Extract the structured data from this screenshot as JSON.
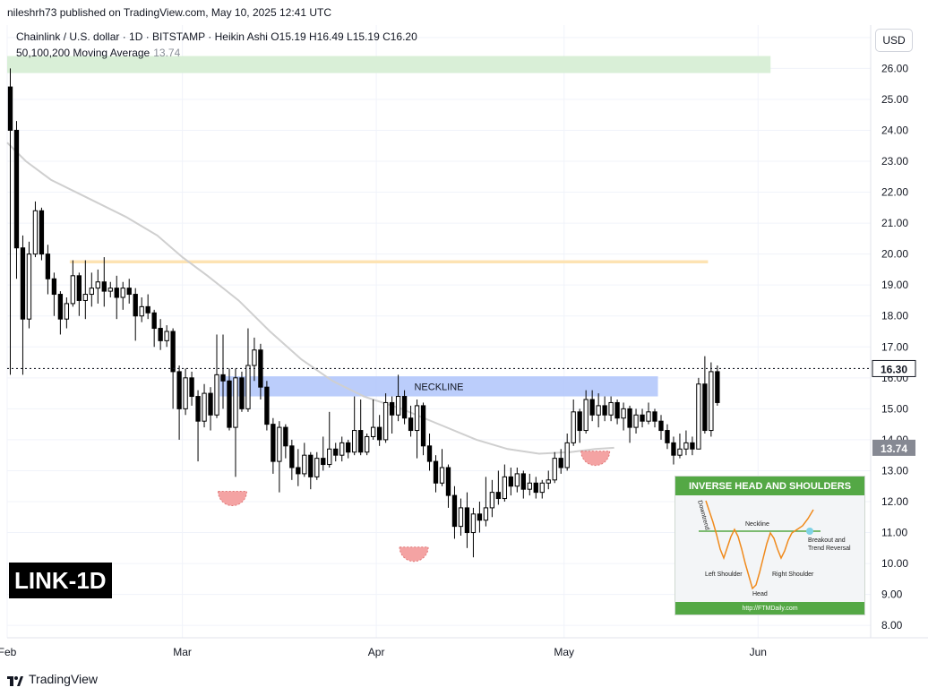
{
  "header": {
    "publisher": "nileshrh73 published on TradingView.com, May 10, 2025 12:41 UTC",
    "legend_line1": "Chainlink / U.S. dollar · 1D · BITSTAMP · Heikin Ashi  O15.19  H16.49  L15.19  C16.20",
    "legend_line2": "50,100,200 Moving Average",
    "legend_ma_value": "13.74",
    "currency_button": "USD"
  },
  "ticker_label": "LINK-1D",
  "footer": {
    "brand": "TradingView"
  },
  "colors": {
    "bull_candle": "#ffffff",
    "bear_candle": "#000000",
    "ma_line": "#cfcfcf",
    "resistance_zone": "#d9efd7",
    "mid_zone": "#fde3b3",
    "neckline_zone": "#b4c8fb",
    "shoulder_marker": "#f4a3a3",
    "inset_green": "#54a845",
    "price_marker_bg": "#ffffff",
    "ma_marker_bg": "#868993"
  },
  "inset": {
    "title": "INVERSE HEAD AND SHOULDERS",
    "neckline": "Neckline",
    "downtrend": "Downtrend",
    "left_shoulder": "Left Shoulder",
    "right_shoulder": "Right Shoulder",
    "head": "Head",
    "breakout": "Breakout and Trend Reversal",
    "url": "http://FTMDaily.com"
  },
  "chart_data": {
    "type": "candlestick",
    "title": "Chainlink / U.S. dollar · 1D · BITSTAMP · Heikin Ashi",
    "y_axis": {
      "ylim": [
        7.6,
        27.4
      ],
      "ticks": [
        8,
        9,
        10,
        11,
        12,
        13,
        14,
        15,
        16,
        17,
        18,
        19,
        20,
        21,
        22,
        23,
        24,
        25,
        26,
        27
      ],
      "tick_labels": [
        "8.00",
        "9.00",
        "10.00",
        "11.00",
        "12.00",
        "13.00",
        "14.00",
        "15.00",
        "16.00",
        "17.00",
        "18.00",
        "19.00",
        "20.00",
        "21.00",
        "22.00",
        "23.00",
        "24.00",
        "25.00",
        "26.00",
        "27.00"
      ]
    },
    "x_axis": {
      "start_date": "2025-02-01",
      "end_date": "2025-06-19",
      "tick_dates": [
        "2025-02-01",
        "2025-03-01",
        "2025-04-01",
        "2025-05-01",
        "2025-06-01"
      ],
      "tick_labels": [
        "Feb",
        "Mar",
        "Apr",
        "May",
        "Jun"
      ]
    },
    "current_price": {
      "value": 16.3,
      "label": "16.30"
    },
    "ma_current": {
      "value": 13.74,
      "label": "13.74"
    },
    "zones": [
      {
        "name": "resistance-zone",
        "from": "2025-02-01",
        "to": "2025-06-03",
        "low": 25.85,
        "high": 26.4
      },
      {
        "name": "mid-zone",
        "from": "2025-02-11",
        "to": "2025-05-24",
        "low": 19.7,
        "high": 19.8
      },
      {
        "name": "neckline-zone",
        "from": "2025-03-07",
        "to": "2025-05-16",
        "low": 15.4,
        "high": 16.05,
        "label": "NECKLINE"
      }
    ],
    "shoulder_markers": [
      {
        "name": "left-shoulder-marker",
        "date": "2025-03-09",
        "price": 12.1
      },
      {
        "name": "head-marker",
        "date": "2025-04-07",
        "price": 10.3
      },
      {
        "name": "right-shoulder-marker",
        "date": "2025-05-06",
        "price": 13.4
      }
    ],
    "moving_average": [
      {
        "date": "2025-02-01",
        "value": 23.6
      },
      {
        "date": "2025-02-04",
        "value": 23.0
      },
      {
        "date": "2025-02-08",
        "value": 22.4
      },
      {
        "date": "2025-02-14",
        "value": 21.8
      },
      {
        "date": "2025-02-20",
        "value": 21.2
      },
      {
        "date": "2025-02-25",
        "value": 20.6
      },
      {
        "date": "2025-03-01",
        "value": 19.9
      },
      {
        "date": "2025-03-05",
        "value": 19.3
      },
      {
        "date": "2025-03-10",
        "value": 18.5
      },
      {
        "date": "2025-03-15",
        "value": 17.5
      },
      {
        "date": "2025-03-20",
        "value": 16.6
      },
      {
        "date": "2025-03-25",
        "value": 15.9
      },
      {
        "date": "2025-03-30",
        "value": 15.4
      },
      {
        "date": "2025-04-05",
        "value": 15.0
      },
      {
        "date": "2025-04-11",
        "value": 14.5
      },
      {
        "date": "2025-04-17",
        "value": 14.0
      },
      {
        "date": "2025-04-22",
        "value": 13.7
      },
      {
        "date": "2025-04-27",
        "value": 13.55
      },
      {
        "date": "2025-05-02",
        "value": 13.6
      },
      {
        "date": "2025-05-06",
        "value": 13.7
      },
      {
        "date": "2025-05-09",
        "value": 13.74
      }
    ],
    "candles": [
      {
        "date": "2025-02-01",
        "open": 25.4,
        "close": 24.0,
        "high": 26.0,
        "low": 16.1
      },
      {
        "date": "2025-02-02",
        "open": 24.0,
        "close": 20.2,
        "high": 24.3,
        "low": 19.2
      },
      {
        "date": "2025-02-03",
        "open": 20.2,
        "close": 17.9,
        "high": 20.6,
        "low": 16.1
      },
      {
        "date": "2025-02-04",
        "open": 17.9,
        "close": 20.0,
        "high": 20.4,
        "low": 17.6
      },
      {
        "date": "2025-02-05",
        "open": 20.0,
        "close": 21.4,
        "high": 21.7,
        "low": 19.9
      },
      {
        "date": "2025-02-06",
        "open": 21.4,
        "close": 20.0,
        "high": 21.5,
        "low": 19.8
      },
      {
        "date": "2025-02-07",
        "open": 20.0,
        "close": 19.2,
        "high": 20.3,
        "low": 18.7
      },
      {
        "date": "2025-02-08",
        "open": 19.2,
        "close": 18.7,
        "high": 19.4,
        "low": 18.0
      },
      {
        "date": "2025-02-09",
        "open": 18.7,
        "close": 17.9,
        "high": 18.8,
        "low": 17.4
      },
      {
        "date": "2025-02-10",
        "open": 17.9,
        "close": 18.4,
        "high": 18.6,
        "low": 17.6
      },
      {
        "date": "2025-02-11",
        "open": 18.4,
        "close": 19.3,
        "high": 19.8,
        "low": 18.3
      },
      {
        "date": "2025-02-12",
        "open": 19.3,
        "close": 18.5,
        "high": 19.4,
        "low": 18.0
      },
      {
        "date": "2025-02-13",
        "open": 18.5,
        "close": 18.7,
        "high": 19.8,
        "low": 17.9
      },
      {
        "date": "2025-02-14",
        "open": 18.7,
        "close": 18.9,
        "high": 19.4,
        "low": 18.3
      },
      {
        "date": "2025-02-15",
        "open": 18.9,
        "close": 19.1,
        "high": 19.5,
        "low": 18.4
      },
      {
        "date": "2025-02-16",
        "open": 19.1,
        "close": 18.8,
        "high": 19.9,
        "low": 18.3
      },
      {
        "date": "2025-02-17",
        "open": 18.8,
        "close": 18.9,
        "high": 19.1,
        "low": 18.6
      },
      {
        "date": "2025-02-18",
        "open": 18.9,
        "close": 18.6,
        "high": 19.3,
        "low": 17.9
      },
      {
        "date": "2025-02-19",
        "open": 18.6,
        "close": 18.9,
        "high": 19.1,
        "low": 18.2
      },
      {
        "date": "2025-02-20",
        "open": 18.9,
        "close": 18.7,
        "high": 19.2,
        "low": 18.4
      },
      {
        "date": "2025-02-21",
        "open": 18.7,
        "close": 18.0,
        "high": 18.9,
        "low": 17.2
      },
      {
        "date": "2025-02-22",
        "open": 18.0,
        "close": 18.3,
        "high": 18.6,
        "low": 17.8
      },
      {
        "date": "2025-02-23",
        "open": 18.3,
        "close": 18.1,
        "high": 18.7,
        "low": 17.9
      },
      {
        "date": "2025-02-24",
        "open": 18.1,
        "close": 17.6,
        "high": 18.2,
        "low": 17.0
      },
      {
        "date": "2025-02-25",
        "open": 17.6,
        "close": 17.2,
        "high": 17.9,
        "low": 16.9
      },
      {
        "date": "2025-02-26",
        "open": 17.2,
        "close": 17.5,
        "high": 17.7,
        "low": 17.0
      },
      {
        "date": "2025-02-27",
        "open": 17.5,
        "close": 16.2,
        "high": 17.6,
        "low": 15.0
      },
      {
        "date": "2025-02-28",
        "open": 16.2,
        "close": 15.0,
        "high": 16.4,
        "low": 14.0
      },
      {
        "date": "2025-03-01",
        "open": 15.0,
        "close": 16.0,
        "high": 16.3,
        "low": 14.8
      },
      {
        "date": "2025-03-02",
        "open": 16.0,
        "close": 15.4,
        "high": 16.2,
        "low": 15.1
      },
      {
        "date": "2025-03-03",
        "open": 15.4,
        "close": 14.6,
        "high": 15.6,
        "low": 13.3
      },
      {
        "date": "2025-03-04",
        "open": 14.6,
        "close": 15.5,
        "high": 15.8,
        "low": 14.4
      },
      {
        "date": "2025-03-05",
        "open": 15.5,
        "close": 14.8,
        "high": 15.7,
        "low": 14.3
      },
      {
        "date": "2025-03-06",
        "open": 14.8,
        "close": 16.1,
        "high": 17.4,
        "low": 14.7
      },
      {
        "date": "2025-03-07",
        "open": 16.1,
        "close": 15.9,
        "high": 17.4,
        "low": 15.0
      },
      {
        "date": "2025-03-08",
        "open": 15.9,
        "close": 14.4,
        "high": 16.3,
        "low": 14.3
      },
      {
        "date": "2025-03-09",
        "open": 14.4,
        "close": 16.0,
        "high": 16.3,
        "low": 12.8
      },
      {
        "date": "2025-03-10",
        "open": 16.0,
        "close": 15.0,
        "high": 16.2,
        "low": 14.9
      },
      {
        "date": "2025-03-11",
        "open": 15.0,
        "close": 16.4,
        "high": 17.6,
        "low": 14.9
      },
      {
        "date": "2025-03-12",
        "open": 16.4,
        "close": 16.9,
        "high": 17.3,
        "low": 15.9
      },
      {
        "date": "2025-03-13",
        "open": 16.9,
        "close": 15.7,
        "high": 17.1,
        "low": 15.3
      },
      {
        "date": "2025-03-14",
        "open": 15.7,
        "close": 14.5,
        "high": 15.9,
        "low": 14.3
      },
      {
        "date": "2025-03-15",
        "open": 14.5,
        "close": 13.3,
        "high": 14.7,
        "low": 12.9
      },
      {
        "date": "2025-03-16",
        "open": 13.3,
        "close": 14.4,
        "high": 14.6,
        "low": 12.3
      },
      {
        "date": "2025-03-17",
        "open": 14.4,
        "close": 13.8,
        "high": 14.5,
        "low": 13.4
      },
      {
        "date": "2025-03-18",
        "open": 13.8,
        "close": 13.1,
        "high": 14.0,
        "low": 12.7
      },
      {
        "date": "2025-03-19",
        "open": 13.1,
        "close": 12.9,
        "high": 13.7,
        "low": 12.5
      },
      {
        "date": "2025-03-20",
        "open": 12.9,
        "close": 13.5,
        "high": 13.9,
        "low": 12.8
      },
      {
        "date": "2025-03-21",
        "open": 13.5,
        "close": 12.8,
        "high": 13.6,
        "low": 12.4
      },
      {
        "date": "2025-03-22",
        "open": 12.8,
        "close": 13.4,
        "high": 13.6,
        "low": 12.7
      },
      {
        "date": "2025-03-23",
        "open": 13.4,
        "close": 13.2,
        "high": 14.1,
        "low": 13.0
      },
      {
        "date": "2025-03-24",
        "open": 13.2,
        "close": 13.7,
        "high": 14.9,
        "low": 13.1
      },
      {
        "date": "2025-03-25",
        "open": 13.7,
        "close": 13.5,
        "high": 13.9,
        "low": 13.3
      },
      {
        "date": "2025-03-26",
        "open": 13.5,
        "close": 13.9,
        "high": 14.1,
        "low": 13.3
      },
      {
        "date": "2025-03-27",
        "open": 13.9,
        "close": 13.6,
        "high": 14.0,
        "low": 13.4
      },
      {
        "date": "2025-03-28",
        "open": 13.6,
        "close": 14.3,
        "high": 15.4,
        "low": 13.5
      },
      {
        "date": "2025-03-29",
        "open": 14.3,
        "close": 13.6,
        "high": 15.3,
        "low": 13.5
      },
      {
        "date": "2025-03-30",
        "open": 13.6,
        "close": 14.1,
        "high": 14.2,
        "low": 13.5
      },
      {
        "date": "2025-03-31",
        "open": 14.1,
        "close": 14.4,
        "high": 15.3,
        "low": 14.0
      },
      {
        "date": "2025-04-01",
        "open": 14.4,
        "close": 14.0,
        "high": 14.8,
        "low": 13.8
      },
      {
        "date": "2025-04-02",
        "open": 14.0,
        "close": 15.2,
        "high": 15.5,
        "low": 13.9
      },
      {
        "date": "2025-04-03",
        "open": 15.2,
        "close": 14.8,
        "high": 15.4,
        "low": 14.2
      },
      {
        "date": "2025-04-04",
        "open": 14.8,
        "close": 15.4,
        "high": 16.1,
        "low": 14.6
      },
      {
        "date": "2025-04-05",
        "open": 15.4,
        "close": 14.7,
        "high": 15.6,
        "low": 14.5
      },
      {
        "date": "2025-04-06",
        "open": 14.7,
        "close": 14.3,
        "high": 15.1,
        "low": 14.1
      },
      {
        "date": "2025-04-07",
        "open": 14.3,
        "close": 15.1,
        "high": 15.3,
        "low": 13.4
      },
      {
        "date": "2025-04-08",
        "open": 15.1,
        "close": 13.8,
        "high": 15.2,
        "low": 13.5
      },
      {
        "date": "2025-04-09",
        "open": 13.8,
        "close": 13.3,
        "high": 14.2,
        "low": 13.0
      },
      {
        "date": "2025-04-10",
        "open": 13.3,
        "close": 12.6,
        "high": 13.5,
        "low": 12.3
      },
      {
        "date": "2025-04-11",
        "open": 12.6,
        "close": 13.1,
        "high": 13.7,
        "low": 12.5
      },
      {
        "date": "2025-04-12",
        "open": 13.1,
        "close": 12.2,
        "high": 13.2,
        "low": 11.8
      },
      {
        "date": "2025-04-13",
        "open": 12.2,
        "close": 11.2,
        "high": 12.5,
        "low": 10.8
      },
      {
        "date": "2025-04-14",
        "open": 11.2,
        "close": 11.8,
        "high": 12.1,
        "low": 10.9
      },
      {
        "date": "2025-04-15",
        "open": 11.8,
        "close": 11.0,
        "high": 12.3,
        "low": 10.5
      },
      {
        "date": "2025-04-16",
        "open": 11.0,
        "close": 11.6,
        "high": 11.8,
        "low": 10.2
      },
      {
        "date": "2025-04-17",
        "open": 11.6,
        "close": 11.4,
        "high": 12.0,
        "low": 11.0
      },
      {
        "date": "2025-04-18",
        "open": 11.4,
        "close": 11.8,
        "high": 12.8,
        "low": 11.2
      },
      {
        "date": "2025-04-19",
        "open": 11.8,
        "close": 12.3,
        "high": 12.7,
        "low": 11.5
      },
      {
        "date": "2025-04-20",
        "open": 12.3,
        "close": 12.1,
        "high": 13.0,
        "low": 11.9
      },
      {
        "date": "2025-04-21",
        "open": 12.1,
        "close": 12.8,
        "high": 13.2,
        "low": 12.0
      },
      {
        "date": "2025-04-22",
        "open": 12.8,
        "close": 12.5,
        "high": 13.1,
        "low": 12.2
      },
      {
        "date": "2025-04-23",
        "open": 12.5,
        "close": 12.9,
        "high": 13.1,
        "low": 12.3
      },
      {
        "date": "2025-04-24",
        "open": 12.9,
        "close": 12.4,
        "high": 13.0,
        "low": 12.1
      },
      {
        "date": "2025-04-25",
        "open": 12.4,
        "close": 12.6,
        "high": 12.9,
        "low": 12.2
      },
      {
        "date": "2025-04-26",
        "open": 12.6,
        "close": 12.3,
        "high": 12.8,
        "low": 12.1
      },
      {
        "date": "2025-04-27",
        "open": 12.3,
        "close": 12.6,
        "high": 12.7,
        "low": 12.1
      },
      {
        "date": "2025-04-28",
        "open": 12.6,
        "close": 12.7,
        "high": 13.0,
        "low": 12.4
      },
      {
        "date": "2025-04-29",
        "open": 12.7,
        "close": 13.4,
        "high": 13.6,
        "low": 12.6
      },
      {
        "date": "2025-04-30",
        "open": 13.4,
        "close": 13.1,
        "high": 13.7,
        "low": 12.9
      },
      {
        "date": "2025-05-01",
        "open": 13.1,
        "close": 13.9,
        "high": 14.2,
        "low": 13.0
      },
      {
        "date": "2025-05-02",
        "open": 13.9,
        "close": 14.9,
        "high": 15.3,
        "low": 13.8
      },
      {
        "date": "2025-05-03",
        "open": 14.9,
        "close": 14.3,
        "high": 15.0,
        "low": 13.9
      },
      {
        "date": "2025-05-04",
        "open": 14.3,
        "close": 15.3,
        "high": 15.6,
        "low": 14.2
      },
      {
        "date": "2025-05-05",
        "open": 15.3,
        "close": 14.8,
        "high": 15.6,
        "low": 14.6
      },
      {
        "date": "2025-05-06",
        "open": 14.8,
        "close": 15.1,
        "high": 15.5,
        "low": 14.4
      },
      {
        "date": "2025-05-07",
        "open": 15.1,
        "close": 14.8,
        "high": 15.4,
        "low": 14.6
      },
      {
        "date": "2025-05-08",
        "open": 14.8,
        "close": 15.2,
        "high": 15.4,
        "low": 14.6
      },
      {
        "date": "2025-05-09",
        "open": 15.2,
        "close": 14.7,
        "high": 15.3,
        "low": 14.5
      },
      {
        "date": "2025-05-10",
        "open": 14.7,
        "close": 15.0,
        "high": 15.2,
        "low": 14.3
      },
      {
        "date": "2025-05-11",
        "open": 15.0,
        "close": 14.4,
        "high": 15.1,
        "low": 13.9
      },
      {
        "date": "2025-05-12",
        "open": 14.4,
        "close": 14.8,
        "high": 15.0,
        "low": 14.2
      },
      {
        "date": "2025-05-13",
        "open": 14.8,
        "close": 14.6,
        "high": 15.0,
        "low": 14.4
      },
      {
        "date": "2025-05-14",
        "open": 14.6,
        "close": 14.9,
        "high": 15.2,
        "low": 14.5
      },
      {
        "date": "2025-05-15",
        "open": 14.9,
        "close": 14.6,
        "high": 15.0,
        "low": 14.4
      },
      {
        "date": "2025-05-16",
        "open": 14.6,
        "close": 14.3,
        "high": 14.8,
        "low": 14.0
      },
      {
        "date": "2025-05-17",
        "open": 14.3,
        "close": 13.9,
        "high": 14.5,
        "low": 13.7
      },
      {
        "date": "2025-05-18",
        "open": 13.9,
        "close": 13.5,
        "high": 14.1,
        "low": 13.2
      },
      {
        "date": "2025-05-19",
        "open": 13.5,
        "close": 13.7,
        "high": 14.2,
        "low": 13.4
      },
      {
        "date": "2025-05-20",
        "open": 13.7,
        "close": 13.9,
        "high": 14.3,
        "low": 13.5
      },
      {
        "date": "2025-05-21",
        "open": 13.9,
        "close": 13.7,
        "high": 14.1,
        "low": 13.5
      },
      {
        "date": "2025-05-22",
        "open": 13.7,
        "close": 15.8,
        "high": 16.0,
        "low": 13.7
      },
      {
        "date": "2025-05-23",
        "open": 15.8,
        "close": 14.3,
        "high": 16.7,
        "low": 14.2
      },
      {
        "date": "2025-05-24",
        "open": 14.3,
        "close": 16.2,
        "high": 16.5,
        "low": 14.1
      },
      {
        "date": "2025-05-25",
        "open": 16.2,
        "close": 15.2,
        "high": 16.4,
        "low": 15.1
      }
    ]
  }
}
